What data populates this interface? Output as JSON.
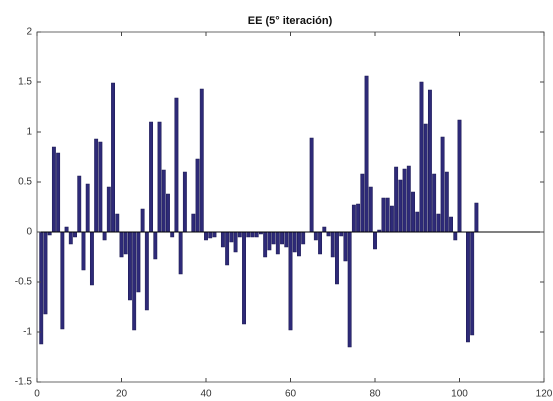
{
  "chart_data": {
    "type": "bar",
    "title": "EE (5° iteración)",
    "x": [
      1,
      2,
      3,
      4,
      5,
      6,
      7,
      8,
      9,
      10,
      11,
      12,
      13,
      14,
      15,
      16,
      17,
      18,
      19,
      20,
      21,
      22,
      23,
      24,
      25,
      26,
      27,
      28,
      29,
      30,
      31,
      32,
      33,
      34,
      35,
      36,
      37,
      38,
      39,
      40,
      41,
      42,
      43,
      44,
      45,
      46,
      47,
      48,
      49,
      50,
      51,
      52,
      53,
      54,
      55,
      56,
      57,
      58,
      59,
      60,
      61,
      62,
      63,
      64,
      65,
      66,
      67,
      68,
      69,
      70,
      71,
      72,
      73,
      74,
      75,
      76,
      77,
      78,
      79,
      80,
      81,
      82,
      83,
      84,
      85,
      86,
      87,
      88,
      89,
      90,
      91,
      92,
      93,
      94,
      95,
      96,
      97,
      98,
      99,
      100,
      101,
      102,
      103,
      104
    ],
    "values": [
      -1.12,
      -0.82,
      -0.03,
      0.85,
      0.79,
      -0.97,
      0.05,
      -0.12,
      -0.05,
      0.56,
      -0.38,
      0.48,
      -0.53,
      0.93,
      0.9,
      -0.08,
      0.45,
      1.49,
      0.18,
      -0.25,
      -0.22,
      -0.68,
      -0.98,
      -0.6,
      0.23,
      -0.78,
      1.1,
      -0.27,
      1.1,
      0.62,
      0.38,
      -0.05,
      1.34,
      -0.42,
      0.6,
      0.0,
      0.18,
      0.73,
      1.43,
      -0.08,
      -0.06,
      -0.05,
      0.0,
      -0.15,
      -0.33,
      -0.1,
      -0.2,
      -0.05,
      -0.92,
      -0.05,
      -0.05,
      -0.05,
      -0.02,
      -0.25,
      -0.18,
      -0.12,
      -0.22,
      -0.12,
      -0.15,
      -0.98,
      -0.2,
      -0.24,
      -0.12,
      0.0,
      0.94,
      -0.08,
      -0.22,
      0.05,
      -0.04,
      -0.25,
      -0.52,
      -0.04,
      -0.29,
      -1.15,
      0.27,
      0.28,
      0.58,
      1.56,
      0.45,
      -0.17,
      0.02,
      0.34,
      0.34,
      0.26,
      0.65,
      0.52,
      0.63,
      0.66,
      0.4,
      0.2,
      1.5,
      1.08,
      1.42,
      0.58,
      0.18,
      0.95,
      0.6,
      0.15,
      -0.08,
      1.12,
      0.0,
      -1.1,
      -1.03,
      0.29
    ],
    "color": "#2e2a78",
    "xlim": [
      0,
      120
    ],
    "xticks": [
      0,
      20,
      40,
      60,
      80,
      100,
      120
    ],
    "ylim": [
      -1.5,
      2
    ],
    "yticks": [
      -1.5,
      -1,
      -0.5,
      0,
      0.5,
      1,
      1.5,
      2
    ]
  }
}
